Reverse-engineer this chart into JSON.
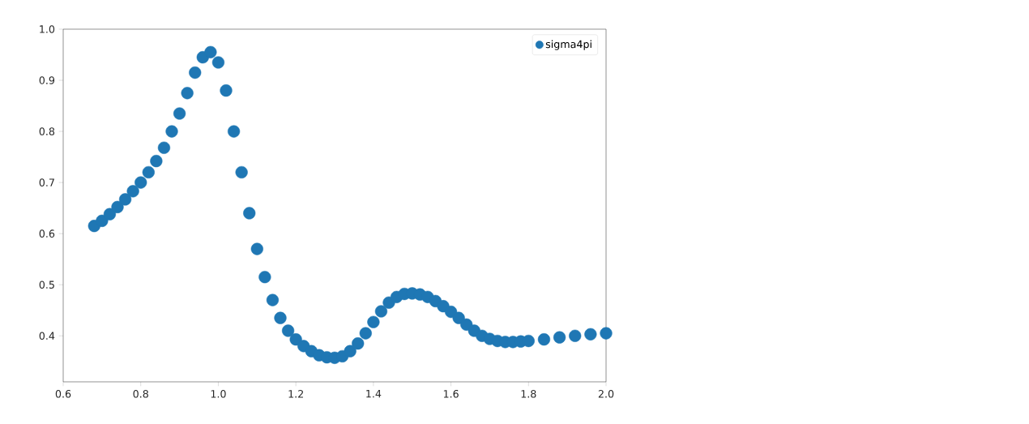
{
  "chart_data": {
    "type": "scatter",
    "x": [
      0.68,
      0.7,
      0.72,
      0.74,
      0.76,
      0.78,
      0.8,
      0.82,
      0.84,
      0.86,
      0.88,
      0.9,
      0.92,
      0.94,
      0.96,
      0.98,
      1.0,
      1.02,
      1.04,
      1.06,
      1.08,
      1.1,
      1.12,
      1.14,
      1.16,
      1.18,
      1.2,
      1.22,
      1.24,
      1.26,
      1.28,
      1.3,
      1.32,
      1.34,
      1.36,
      1.38,
      1.4,
      1.42,
      1.44,
      1.46,
      1.48,
      1.5,
      1.52,
      1.54,
      1.56,
      1.58,
      1.6,
      1.62,
      1.64,
      1.66,
      1.68,
      1.7,
      1.72,
      1.74,
      1.76,
      1.78,
      1.8,
      1.84,
      1.88,
      1.92,
      1.96,
      2.0
    ],
    "series": [
      {
        "name": "sigma4pi",
        "color": "#1f77b4",
        "values": [
          0.615,
          0.625,
          0.638,
          0.652,
          0.667,
          0.683,
          0.7,
          0.72,
          0.742,
          0.768,
          0.8,
          0.835,
          0.875,
          0.915,
          0.945,
          0.955,
          0.935,
          0.88,
          0.8,
          0.72,
          0.64,
          0.57,
          0.515,
          0.47,
          0.435,
          0.41,
          0.393,
          0.38,
          0.37,
          0.362,
          0.358,
          0.357,
          0.36,
          0.37,
          0.385,
          0.405,
          0.427,
          0.448,
          0.465,
          0.476,
          0.482,
          0.483,
          0.481,
          0.476,
          0.468,
          0.458,
          0.447,
          0.435,
          0.422,
          0.41,
          0.4,
          0.394,
          0.39,
          0.388,
          0.388,
          0.389,
          0.39,
          0.393,
          0.397,
          0.4,
          0.403,
          0.405
        ]
      }
    ],
    "xlim": [
      0.6,
      2.0
    ],
    "ylim": [
      0.31,
      1.0
    ],
    "xticks": [
      0.6,
      0.8,
      {
        "value": 1.0,
        "label": "1.0"
      },
      1.2,
      1.4,
      1.6,
      1.8,
      {
        "value": 2.0,
        "label": "2.0"
      }
    ],
    "yticks": [
      0.4,
      0.5,
      0.6,
      0.7,
      0.8,
      0.9,
      {
        "value": 1.0,
        "label": "1.0"
      }
    ],
    "legend": "top right"
  }
}
